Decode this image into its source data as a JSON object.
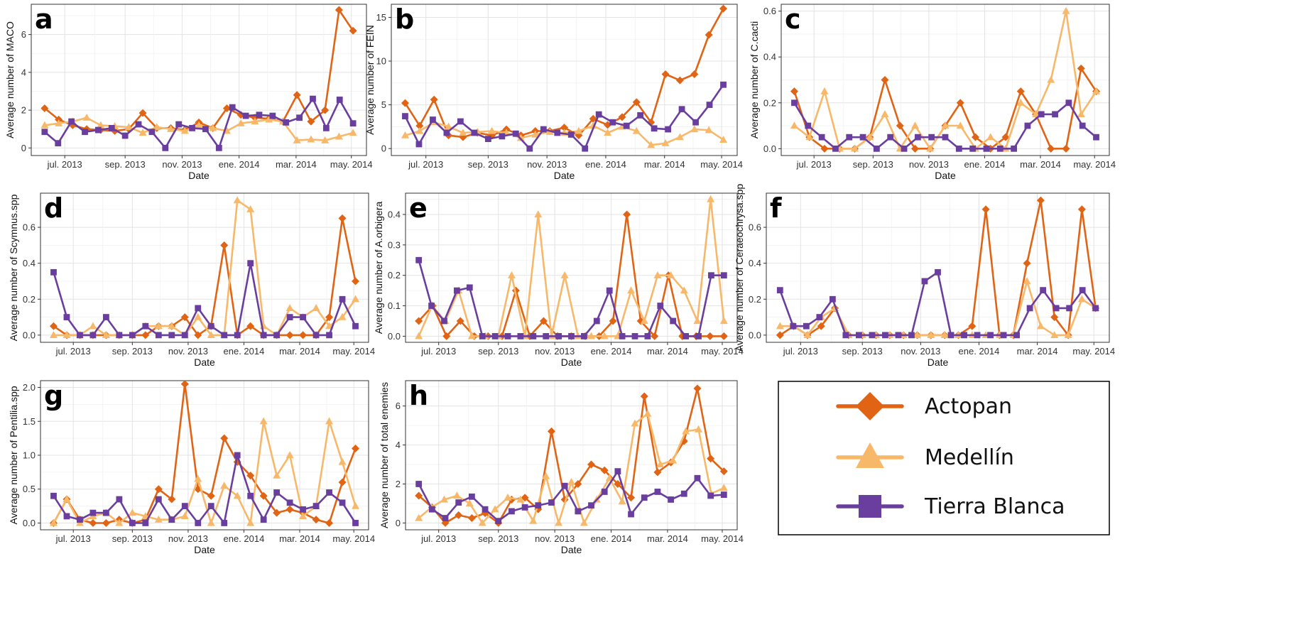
{
  "colors": {
    "Actopan": "#e06414",
    "Medellín": "#f8b86a",
    "Tierra Blanca": "#6a3e9e"
  },
  "legend": {
    "items": [
      {
        "name": "Actopan",
        "marker": "diamond"
      },
      {
        "name": "Medellín",
        "marker": "triangle"
      },
      {
        "name": "Tierra Blanca",
        "marker": "square"
      }
    ]
  },
  "chart_data": [
    {
      "panel": "a",
      "type": "line",
      "xlabel": "Date",
      "ylabel": "Average number of MACO",
      "ylim": [
        -0.4,
        7.6
      ],
      "yticks": [
        0,
        2,
        4,
        6
      ],
      "xticks": [
        "jul. 2013",
        "sep. 2013",
        "nov. 2013",
        "ene. 2014",
        "mar. 2014",
        "may. 2014"
      ],
      "series": [
        {
          "name": "Actopan",
          "values": [
            2.1,
            1.5,
            1.2,
            1.0,
            0.95,
            0.9,
            1.0,
            1.85,
            1.05,
            1.05,
            0.95,
            1.35,
            1.05,
            2.1,
            1.75,
            1.6,
            1.55,
            1.4,
            2.8,
            1.4,
            2.0,
            7.3,
            6.2
          ]
        },
        {
          "name": "Medellín",
          "values": [
            1.2,
            1.3,
            1.4,
            1.6,
            1.2,
            1.15,
            1.1,
            0.8,
            1.1,
            1.0,
            0.9,
            1.2,
            1.05,
            0.9,
            1.3,
            1.4,
            1.5,
            1.4,
            0.4,
            0.45,
            0.4,
            0.6,
            0.8
          ]
        },
        {
          "name": "Tierra Blanca",
          "values": [
            0.85,
            0.25,
            1.4,
            0.85,
            0.95,
            1.05,
            0.65,
            1.25,
            0.85,
            0.0,
            1.25,
            1.05,
            1.0,
            0.0,
            2.15,
            1.7,
            1.75,
            1.7,
            1.35,
            1.6,
            2.6,
            1.05,
            2.55,
            1.3
          ]
        }
      ]
    },
    {
      "panel": "b",
      "type": "line",
      "xlabel": "Date",
      "ylabel": "Average number of FEIN",
      "ylim": [
        -0.8,
        16.5
      ],
      "yticks": [
        0,
        5,
        10,
        15
      ],
      "xticks": [
        "jul. 2013",
        "sep. 2013",
        "nov. 2013",
        "ene. 2014",
        "mar. 2014",
        "may. 2014"
      ],
      "series": [
        {
          "name": "Actopan",
          "values": [
            5.2,
            2.6,
            5.6,
            1.5,
            1.3,
            1.8,
            1.5,
            2.2,
            1.5,
            2.0,
            2.0,
            2.4,
            1.5,
            3.4,
            2.7,
            3.6,
            5.3,
            3.0,
            8.5,
            7.8,
            8.5,
            13.0,
            16.0
          ]
        },
        {
          "name": "Medellín",
          "values": [
            1.5,
            2.0,
            3.0,
            2.5,
            1.8,
            1.9,
            2.0,
            1.8,
            1.2,
            1.6,
            1.9,
            1.8,
            2.0,
            2.6,
            1.8,
            2.5,
            2.0,
            0.4,
            0.6,
            1.3,
            2.2,
            2.1,
            1.0
          ]
        },
        {
          "name": "Tierra Blanca",
          "values": [
            3.7,
            0.5,
            3.3,
            1.8,
            3.1,
            1.8,
            1.1,
            1.4,
            1.7,
            0.0,
            2.2,
            1.8,
            1.6,
            0.0,
            3.9,
            3.0,
            2.6,
            3.8,
            2.3,
            2.2,
            4.5,
            3.0,
            5.0,
            7.3
          ]
        }
      ]
    },
    {
      "panel": "c",
      "type": "line",
      "xlabel": "Date",
      "ylabel": "Average number of C.cacti",
      "ylim": [
        -0.03,
        0.63
      ],
      "yticks": [
        0.0,
        0.2,
        0.4,
        0.6
      ],
      "xticks": [
        "jul. 2013",
        "sep. 2013",
        "nov. 2013",
        "ene. 2014",
        "mar. 2014",
        "may. 2014"
      ],
      "series": [
        {
          "name": "Actopan",
          "values": [
            0.25,
            0.05,
            0.0,
            0.0,
            0.0,
            0.05,
            0.3,
            0.1,
            0.0,
            0.0,
            0.1,
            0.2,
            0.05,
            0.0,
            0.05,
            0.25,
            0.15,
            0.0,
            0.0,
            0.35,
            0.25
          ]
        },
        {
          "name": "Medellín",
          "values": [
            0.1,
            0.05,
            0.25,
            0.0,
            0.0,
            0.05,
            0.15,
            0.0,
            0.1,
            0.0,
            0.1,
            0.1,
            0.0,
            0.05,
            0.0,
            0.2,
            0.15,
            0.3,
            0.6,
            0.15,
            0.25
          ]
        },
        {
          "name": "Tierra Blanca",
          "values": [
            0.2,
            0.1,
            0.05,
            0.0,
            0.05,
            0.05,
            0.0,
            0.05,
            0.0,
            0.05,
            0.05,
            0.05,
            0.0,
            0.0,
            0.0,
            0.0,
            0.0,
            0.1,
            0.15,
            0.15,
            0.2,
            0.1,
            0.05
          ]
        }
      ]
    },
    {
      "panel": "d",
      "type": "line",
      "xlabel": "Date",
      "ylabel": "Average number of Scymnus.spp",
      "ylim": [
        -0.04,
        0.79
      ],
      "yticks": [
        0.0,
        0.2,
        0.4,
        0.6
      ],
      "xticks": [
        "jul. 2013",
        "sep. 2013",
        "nov. 2013",
        "ene. 2014",
        "mar. 2014",
        "may. 2014"
      ],
      "series": [
        {
          "name": "Actopan",
          "values": [
            0.05,
            0.0,
            0.0,
            0.0,
            0.0,
            0.0,
            0.0,
            0.0,
            0.05,
            0.05,
            0.1,
            0.0,
            0.05,
            0.5,
            0.0,
            0.05,
            0.0,
            0.0,
            0.0,
            0.0,
            0.0,
            0.1,
            0.65,
            0.3
          ]
        },
        {
          "name": "Medellín",
          "values": [
            0.0,
            0.0,
            0.0,
            0.05,
            0.0,
            0.0,
            0.0,
            0.05,
            0.05,
            0.05,
            0.0,
            0.1,
            0.0,
            0.0,
            0.75,
            0.7,
            0.05,
            0.0,
            0.15,
            0.1,
            0.15,
            0.05,
            0.1,
            0.2
          ]
        },
        {
          "name": "Tierra Blanca",
          "values": [
            0.35,
            0.1,
            0.0,
            0.0,
            0.1,
            0.0,
            0.0,
            0.05,
            0.0,
            0.0,
            0.0,
            0.15,
            0.05,
            0.0,
            0.0,
            0.4,
            0.0,
            0.0,
            0.1,
            0.1,
            0.0,
            0.0,
            0.2,
            0.05
          ]
        }
      ]
    },
    {
      "panel": "e",
      "type": "line",
      "xlabel": "Date",
      "ylabel": "Average number of A.orbigera",
      "ylim": [
        -0.02,
        0.47
      ],
      "yticks": [
        0.0,
        0.1,
        0.2,
        0.3,
        0.4
      ],
      "xticks": [
        "jul. 2013",
        "sep. 2013",
        "nov. 2013",
        "ene. 2014",
        "mar. 2014",
        "may. 2014"
      ],
      "series": [
        {
          "name": "Actopan",
          "values": [
            0.05,
            0.1,
            0.0,
            0.05,
            0.0,
            0.0,
            0.0,
            0.15,
            0.0,
            0.05,
            0.0,
            0.0,
            0.0,
            0.0,
            0.05,
            0.4,
            0.05,
            0.0,
            0.2,
            0.0,
            0.0,
            0.0,
            0.0
          ]
        },
        {
          "name": "Medellín",
          "values": [
            0.0,
            0.1,
            0.05,
            0.15,
            0.0,
            0.0,
            0.0,
            0.2,
            0.0,
            0.4,
            0.0,
            0.2,
            0.0,
            0.0,
            0.0,
            0.0,
            0.15,
            0.05,
            0.2,
            0.2,
            0.15,
            0.05,
            0.45,
            0.05
          ]
        },
        {
          "name": "Tierra Blanca",
          "values": [
            0.25,
            0.1,
            0.05,
            0.15,
            0.16,
            0.0,
            0.0,
            0.0,
            0.0,
            0.0,
            0.0,
            0.0,
            0.0,
            0.0,
            0.05,
            0.15,
            0.0,
            0.0,
            0.0,
            0.1,
            0.05,
            0.0,
            0.0,
            0.2,
            0.2
          ]
        }
      ]
    },
    {
      "panel": "f",
      "type": "line",
      "xlabel": "Date",
      "ylabel": "Average number of Ceraeochrysa.spp",
      "ylim": [
        -0.04,
        0.79
      ],
      "yticks": [
        0.0,
        0.2,
        0.4,
        0.6
      ],
      "xticks": [
        "jul. 2013",
        "sep. 2013",
        "nov. 2013",
        "ene. 2014",
        "mar. 2014",
        "may. 2014"
      ],
      "series": [
        {
          "name": "Actopan",
          "values": [
            0.0,
            0.05,
            0.0,
            0.05,
            0.15,
            0.0,
            0.0,
            0.0,
            0.0,
            0.0,
            0.0,
            0.0,
            0.0,
            0.0,
            0.05,
            0.7,
            0.0,
            0.0,
            0.4,
            0.75,
            0.1,
            0.0,
            0.7,
            0.15
          ]
        },
        {
          "name": "Medellín",
          "values": [
            0.05,
            0.05,
            0.0,
            0.1,
            0.15,
            0.0,
            0.0,
            0.0,
            0.0,
            0.0,
            0.0,
            0.0,
            0.0,
            0.0,
            0.0,
            0.0,
            0.0,
            0.0,
            0.3,
            0.05,
            0.0,
            0.0,
            0.2,
            0.15
          ]
        },
        {
          "name": "Tierra Blanca",
          "values": [
            0.25,
            0.05,
            0.05,
            0.1,
            0.2,
            0.0,
            0.0,
            0.0,
            0.0,
            0.0,
            0.0,
            0.3,
            0.35,
            0.0,
            0.0,
            0.0,
            0.0,
            0.0,
            0.0,
            0.15,
            0.25,
            0.15,
            0.15,
            0.25,
            0.15
          ]
        }
      ]
    },
    {
      "panel": "g",
      "type": "line",
      "xlabel": "Date",
      "ylabel": "Average number of Pentilia.spp",
      "ylim": [
        -0.1,
        2.1
      ],
      "yticks": [
        0.0,
        0.5,
        1.0,
        1.5,
        2.0
      ],
      "xticks": [
        "jul. 2013",
        "sep. 2013",
        "nov. 2013",
        "ene. 2014",
        "mar. 2014",
        "may. 2014"
      ],
      "series": [
        {
          "name": "Actopan",
          "values": [
            0.0,
            0.35,
            0.05,
            0.0,
            0.0,
            0.05,
            0.0,
            0.05,
            0.5,
            0.35,
            2.05,
            0.5,
            0.4,
            1.25,
            0.9,
            0.7,
            0.4,
            0.15,
            0.2,
            0.15,
            0.05,
            0.0,
            0.6,
            1.1
          ]
        },
        {
          "name": "Medellín",
          "values": [
            0.0,
            0.35,
            0.0,
            0.1,
            0.15,
            0.0,
            0.15,
            0.1,
            0.05,
            0.05,
            0.1,
            0.65,
            0.0,
            0.55,
            0.4,
            0.0,
            1.5,
            0.7,
            1.0,
            0.1,
            0.25,
            1.5,
            0.9,
            0.25
          ]
        },
        {
          "name": "Tierra Blanca",
          "values": [
            0.4,
            0.1,
            0.05,
            0.15,
            0.15,
            0.35,
            0.0,
            0.0,
            0.35,
            0.05,
            0.25,
            0.0,
            0.25,
            0.0,
            1.0,
            0.4,
            0.05,
            0.45,
            0.3,
            0.2,
            0.25,
            0.45,
            0.3,
            0.0
          ]
        }
      ]
    },
    {
      "panel": "h",
      "type": "line",
      "xlabel": "Date",
      "ylabel": "Average number of total enemies",
      "ylim": [
        -0.35,
        7.3
      ],
      "yticks": [
        0,
        2,
        4,
        6
      ],
      "xticks": [
        "jul. 2013",
        "sep. 2013",
        "nov. 2013",
        "ene. 2014",
        "mar. 2014",
        "may. 2014"
      ],
      "series": [
        {
          "name": "Actopan",
          "values": [
            1.4,
            0.8,
            0.0,
            0.4,
            0.25,
            0.5,
            0.0,
            1.2,
            1.3,
            0.7,
            4.7,
            1.2,
            2.0,
            3.0,
            2.7,
            2.0,
            1.3,
            6.5,
            2.6,
            3.1,
            4.2,
            6.9,
            3.3,
            2.65
          ]
        },
        {
          "name": "Medellín",
          "values": [
            0.25,
            0.8,
            1.2,
            1.4,
            1.0,
            0.0,
            0.7,
            1.3,
            1.2,
            0.1,
            2.4,
            0.0,
            2.1,
            0.0,
            1.2,
            2.3,
            1.1,
            5.1,
            5.6,
            3.0,
            3.2,
            4.7,
            4.8,
            1.5,
            1.8
          ]
        },
        {
          "name": "Tierra Blanca",
          "values": [
            2.0,
            0.7,
            0.25,
            1.05,
            1.35,
            0.7,
            0.1,
            0.6,
            0.8,
            0.9,
            1.05,
            1.9,
            0.6,
            0.9,
            1.6,
            2.65,
            0.45,
            1.3,
            1.6,
            1.2,
            1.5,
            2.3,
            1.4,
            1.45
          ]
        }
      ]
    }
  ]
}
